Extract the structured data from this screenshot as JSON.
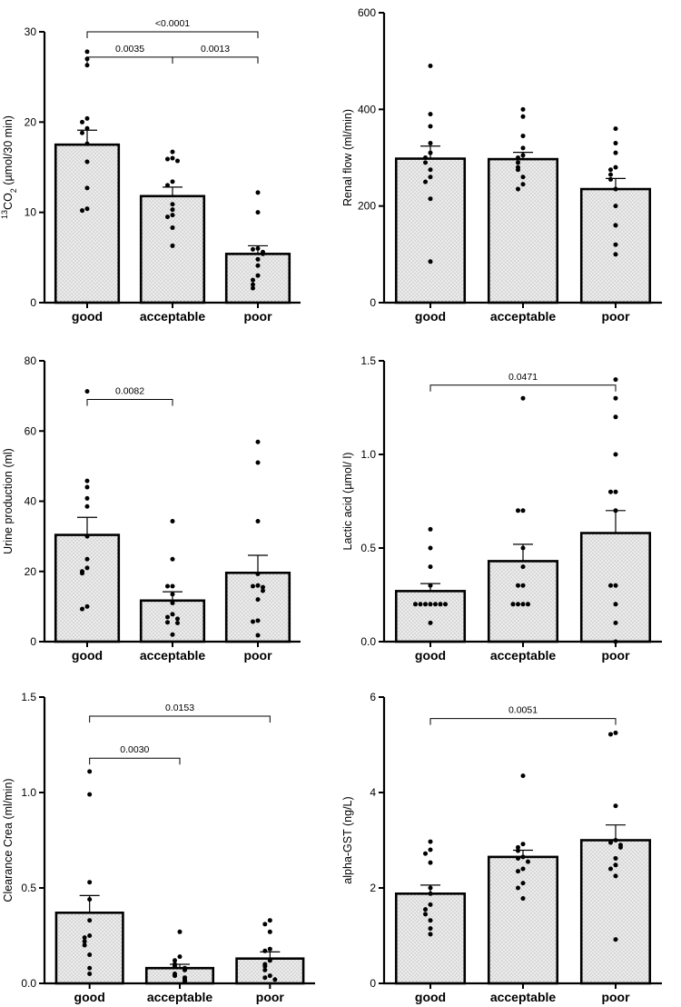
{
  "style": {
    "bar_fill": "#ececec",
    "stipple": "#8a8a8a",
    "ink": "#000000"
  },
  "chart_data": [
    {
      "type": "bar",
      "ylabel_parts": [
        {
          "t": "13",
          "sup": true
        },
        {
          "t": "CO"
        },
        {
          "t": "2",
          "sub": true
        },
        {
          "t": " (µmol/30 min)"
        }
      ],
      "ylim": [
        0,
        30
      ],
      "yticks": [
        0,
        10,
        20,
        30
      ],
      "categories": [
        "good",
        "acceptable",
        "poor"
      ],
      "means": [
        17.5,
        11.8,
        5.4
      ],
      "sems": [
        1.6,
        1.0,
        0.9
      ],
      "points": [
        [
          27.8,
          27.0,
          26.3,
          20.4,
          20.0,
          19.3,
          18.8,
          17.6,
          15.6,
          12.7,
          10.4,
          10.2
        ],
        [
          16.7,
          16.0,
          15.9,
          15.7,
          13.4,
          13.0,
          10.9,
          10.3,
          9.7,
          9.5,
          8.3,
          6.3
        ],
        [
          12.2,
          10.0,
          6.0,
          5.9,
          5.6,
          5.4,
          4.8,
          4.1,
          3.0,
          2.5,
          2.0,
          1.6
        ]
      ],
      "significance": [
        {
          "from": 0,
          "to": 1,
          "y": 27.2,
          "label": "0.0035"
        },
        {
          "from": 1,
          "to": 2,
          "y": 27.2,
          "label": "0.0013"
        },
        {
          "from": 0,
          "to": 2,
          "y": 30.0,
          "label": "<0.0001"
        }
      ]
    },
    {
      "type": "bar",
      "ylabel_parts": [
        {
          "t": "Renal flow (ml/min)"
        }
      ],
      "ylim": [
        0,
        600
      ],
      "yticks": [
        0,
        200,
        400,
        600
      ],
      "categories": [
        "good",
        "acceptable",
        "poor"
      ],
      "means": [
        298,
        297,
        235
      ],
      "sems": [
        26,
        14,
        22
      ],
      "points": [
        [
          490,
          390,
          365,
          330,
          310,
          300,
          290,
          275,
          260,
          250,
          215,
          85
        ],
        [
          400,
          385,
          345,
          320,
          305,
          300,
          290,
          280,
          275,
          260,
          245,
          235
        ],
        [
          360,
          330,
          310,
          280,
          275,
          265,
          255,
          235,
          200,
          160,
          120,
          100
        ]
      ],
      "significance": []
    },
    {
      "type": "bar",
      "ylabel_parts": [
        {
          "t": "Urine production (ml)"
        }
      ],
      "ylim": [
        0,
        80
      ],
      "yticks": [
        0,
        20,
        40,
        60,
        80
      ],
      "categories": [
        "good",
        "acceptable",
        "poor"
      ],
      "means": [
        30.4,
        11.7,
        19.6
      ],
      "sems": [
        5.0,
        2.5,
        5.0
      ],
      "points": [
        [
          71.3,
          45.8,
          44.0,
          40.8,
          38.5,
          30.0,
          23.5,
          21.0,
          20.0,
          19.5,
          10.0,
          9.3
        ],
        [
          34.3,
          23.5,
          15.8,
          15.8,
          13.5,
          11.0,
          7.8,
          7.0,
          6.5,
          5.5,
          5.3,
          2.0
        ],
        [
          56.9,
          51.0,
          34.3,
          19.3,
          16.0,
          15.8,
          15.5,
          14.5,
          12.0,
          6.0,
          5.7,
          1.8
        ]
      ],
      "significance": [
        {
          "from": 0,
          "to": 1,
          "y": 69.0,
          "label": "0.0082"
        }
      ]
    },
    {
      "type": "bar",
      "ylabel_parts": [
        {
          "t": "Lactic acid (µmol/ l)"
        }
      ],
      "ylim": [
        0,
        1.5
      ],
      "yticks": [
        0.0,
        0.5,
        1.0,
        1.5
      ],
      "tick_decimals": 1,
      "categories": [
        "good",
        "acceptable",
        "poor"
      ],
      "means": [
        0.27,
        0.43,
        0.58
      ],
      "sems": [
        0.04,
        0.09,
        0.12
      ],
      "points": [
        [
          0.6,
          0.5,
          0.4,
          0.3,
          0.2,
          0.2,
          0.2,
          0.2,
          0.2,
          0.2,
          0.2,
          0.1
        ],
        [
          1.3,
          0.7,
          0.7,
          0.5,
          0.4,
          0.3,
          0.3,
          0.2,
          0.2,
          0.2,
          0.2
        ],
        [
          1.4,
          1.3,
          1.2,
          1.0,
          0.8,
          0.8,
          0.7,
          0.3,
          0.3,
          0.2,
          0.1,
          0.0
        ]
      ],
      "significance": [
        {
          "from": 0,
          "to": 2,
          "y": 1.37,
          "label": "0.0471"
        }
      ]
    },
    {
      "type": "bar",
      "ylabel_parts": [
        {
          "t": "Clearance Crea (ml/min)"
        }
      ],
      "ylim": [
        0,
        1.5
      ],
      "yticks": [
        0.0,
        0.5,
        1.0,
        1.5
      ],
      "tick_decimals": 1,
      "categories": [
        "good",
        "acceptable",
        "poor"
      ],
      "means": [
        0.37,
        0.08,
        0.13
      ],
      "sems": [
        0.09,
        0.02,
        0.035
      ],
      "points": [
        [
          1.11,
          0.99,
          0.53,
          0.44,
          0.33,
          0.25,
          0.24,
          0.22,
          0.2,
          0.15,
          0.08,
          0.05
        ],
        [
          0.27,
          0.14,
          0.12,
          0.1,
          0.09,
          0.08,
          0.07,
          0.05,
          0.04,
          0.03,
          0.02,
          0.01
        ],
        [
          0.33,
          0.31,
          0.27,
          0.18,
          0.17,
          0.12,
          0.1,
          0.09,
          0.07,
          0.04,
          0.03,
          0.02
        ]
      ],
      "significance": [
        {
          "from": 0,
          "to": 1,
          "y": 1.18,
          "label": "0.0030"
        },
        {
          "from": 0,
          "to": 2,
          "y": 1.4,
          "label": "0.0153"
        }
      ]
    },
    {
      "type": "bar",
      "ylabel_parts": [
        {
          "t": "alpha-GST (ng/L)"
        }
      ],
      "ylim": [
        0,
        6
      ],
      "yticks": [
        0,
        2,
        4,
        6
      ],
      "categories": [
        "good",
        "acceptable",
        "poor"
      ],
      "means": [
        1.88,
        2.65,
        3.0
      ],
      "sems": [
        0.18,
        0.14,
        0.32
      ],
      "points": [
        [
          2.97,
          2.8,
          2.72,
          2.53,
          2.0,
          1.88,
          1.65,
          1.55,
          1.45,
          1.32,
          1.15,
          1.03
        ],
        [
          4.35,
          2.92,
          2.85,
          2.78,
          2.65,
          2.62,
          2.55,
          2.4,
          2.35,
          2.1,
          2.0,
          1.78
        ],
        [
          5.25,
          5.22,
          3.72,
          3.0,
          2.95,
          2.9,
          2.85,
          2.62,
          2.48,
          2.4,
          2.25,
          0.92
        ]
      ],
      "significance": [
        {
          "from": 0,
          "to": 2,
          "y": 5.55,
          "label": "0.0051"
        }
      ]
    }
  ]
}
